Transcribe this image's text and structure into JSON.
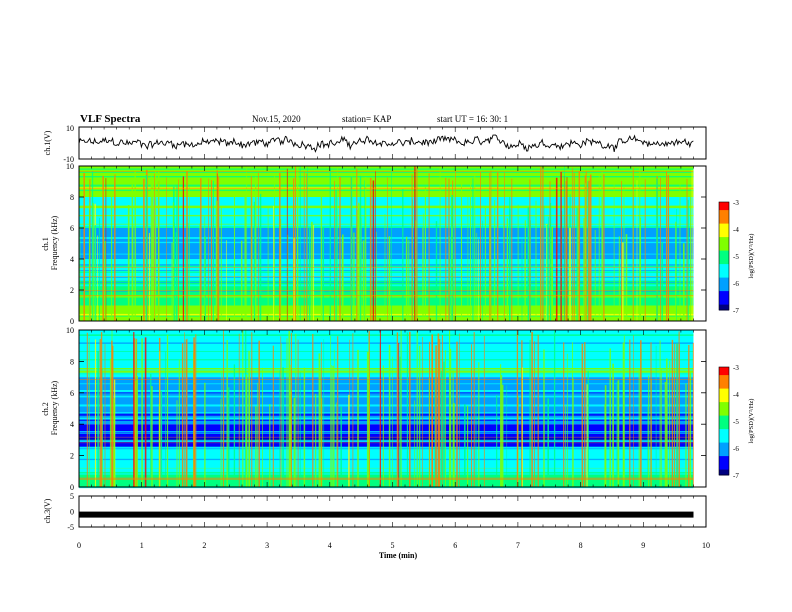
{
  "header": {
    "title": "VLF Spectra",
    "date": "Nov.15, 2020",
    "station": "station= KAP",
    "start": "start UT = 16: 30: 1"
  },
  "colors": {
    "spectrum": [
      "#000080",
      "#0000ff",
      "#00a0ff",
      "#00ffff",
      "#00ff80",
      "#80ff00",
      "#ffff00",
      "#ff8000",
      "#ff0000",
      "#ff80a0",
      "#ffffff"
    ],
    "trace": "#000000"
  },
  "chart_data": [
    {
      "type": "line",
      "panel": "ch1-waveform",
      "ylabel": "ch.1(V)",
      "ylim": [
        -10,
        10
      ],
      "yticks": [
        "10",
        "-10"
      ],
      "xlim": [
        0,
        10
      ],
      "note_series": "noisy voltage waveform, amplitude roughly within -6..+6 V"
    },
    {
      "type": "heatmap",
      "panel": "ch1-spectrogram",
      "ylabel": "ch.1\nFrequency (kHz)",
      "ylim": [
        0,
        10
      ],
      "yticks": [
        "0",
        "2",
        "4",
        "6",
        "8",
        "10"
      ],
      "xlim": [
        0,
        9.8
      ],
      "colorbar": {
        "label": "log(PSD)(V²/Hz)",
        "range": [
          -7,
          -3
        ],
        "ticks": [
          "-3",
          "-4",
          "-5",
          "-6",
          "-7"
        ]
      },
      "bands": [
        {
          "from_khz": 0,
          "to_khz": 1,
          "level": -4.6
        },
        {
          "from_khz": 1,
          "to_khz": 2.5,
          "level": -5.2
        },
        {
          "from_khz": 2.5,
          "to_khz": 4,
          "level": -5.7
        },
        {
          "from_khz": 4,
          "to_khz": 6,
          "level": -6.0
        },
        {
          "from_khz": 6,
          "to_khz": 8,
          "level": -5.4
        },
        {
          "from_khz": 8,
          "to_khz": 10,
          "level": -4.6
        }
      ]
    },
    {
      "type": "heatmap",
      "panel": "ch2-spectrogram",
      "ylabel": "ch.2\nFrequency (kHz)",
      "ylim": [
        0,
        10
      ],
      "yticks": [
        "0",
        "2",
        "4",
        "6",
        "8",
        "10"
      ],
      "xlim": [
        0,
        9.8
      ],
      "colorbar": {
        "label": "log(PSD)(V²/Hz)",
        "range": [
          -7,
          -3
        ],
        "ticks": [
          "-3",
          "-4",
          "-5",
          "-6",
          "-7"
        ]
      },
      "bands": [
        {
          "from_khz": 0,
          "to_khz": 1,
          "level": -5.2
        },
        {
          "from_khz": 1,
          "to_khz": 2.5,
          "level": -5.4
        },
        {
          "from_khz": 2.5,
          "to_khz": 4,
          "level": -6.3
        },
        {
          "from_khz": 4,
          "to_khz": 7,
          "level": -6.1
        },
        {
          "from_khz": 7,
          "to_khz": 10,
          "level": -5.3
        }
      ]
    },
    {
      "type": "line",
      "panel": "ch3-waveform",
      "ylabel": "ch.3(V)",
      "ylim": [
        -5,
        5
      ],
      "yticks": [
        "5",
        "0",
        "-5"
      ],
      "xlim": [
        0,
        10
      ],
      "xlabel": "Time (min)",
      "xticks": [
        "0",
        "1",
        "2",
        "3",
        "4",
        "5",
        "6",
        "7",
        "8",
        "9",
        "10"
      ],
      "constant_value": -1
    }
  ]
}
